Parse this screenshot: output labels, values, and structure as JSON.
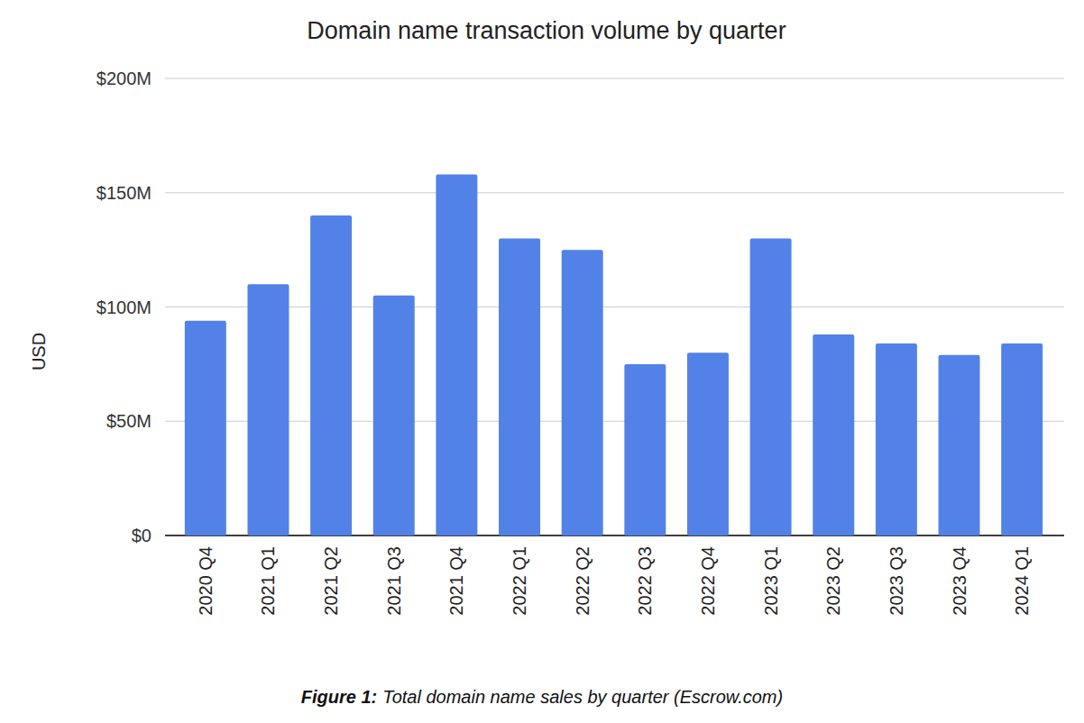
{
  "chart_data": {
    "type": "bar",
    "title": "Domain name transaction volume by quarter",
    "y_label": "USD",
    "caption_label": "Figure 1:",
    "caption": "Total domain name sales by quarter (Escrow.com)",
    "categories": [
      "2020 Q4",
      "2021 Q1",
      "2021 Q2",
      "2021 Q3",
      "2021 Q4",
      "2022 Q1",
      "2022 Q2",
      "2022 Q3",
      "2022 Q4",
      "2023 Q1",
      "2023 Q2",
      "2023 Q3",
      "2023 Q4",
      "2024 Q1"
    ],
    "values": [
      94,
      110,
      140,
      105,
      158,
      130,
      125,
      75,
      80,
      130,
      88,
      84,
      79,
      84
    ],
    "color": "#5282e8",
    "ylim": [
      0,
      200
    ],
    "yticks": [
      {
        "value": 0,
        "label": "$0"
      },
      {
        "value": 50,
        "label": "$50M"
      },
      {
        "value": 100,
        "label": "$100M"
      },
      {
        "value": 150,
        "label": "$150M"
      },
      {
        "value": 200,
        "label": "$200M"
      }
    ],
    "grid": true
  }
}
